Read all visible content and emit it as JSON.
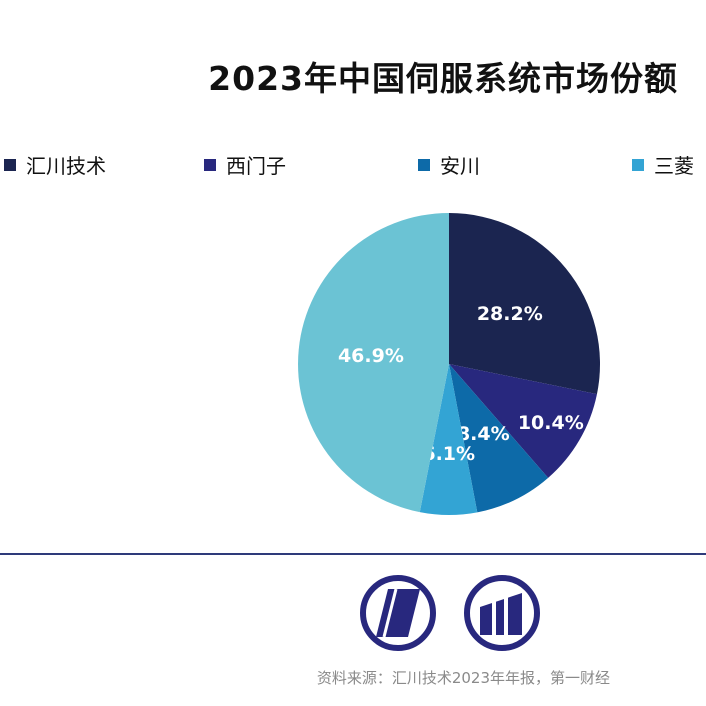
{
  "chart_data": {
    "type": "pie",
    "title": "2023年中国伺服系统市场份额",
    "series": [
      {
        "name": "汇川技术",
        "value": 28.2,
        "label": "28.2%",
        "color": "#1b2550"
      },
      {
        "name": "西门子",
        "value": 10.4,
        "label": "10.4%",
        "color": "#28287e"
      },
      {
        "name": "安川",
        "value": 8.4,
        "label": "8.4%",
        "color": "#0d6aa8"
      },
      {
        "name": "三菱",
        "value": 6.1,
        "label": "6.1%",
        "color": "#33a4d4"
      },
      {
        "name": "",
        "value": 46.9,
        "label": "46.9%",
        "color": "#6bc3d4"
      }
    ],
    "legend_position": "top"
  },
  "footer": {
    "source": "资料来源：汇川技术2023年年报，第一财经",
    "accent_color": "#2e3a7a"
  }
}
